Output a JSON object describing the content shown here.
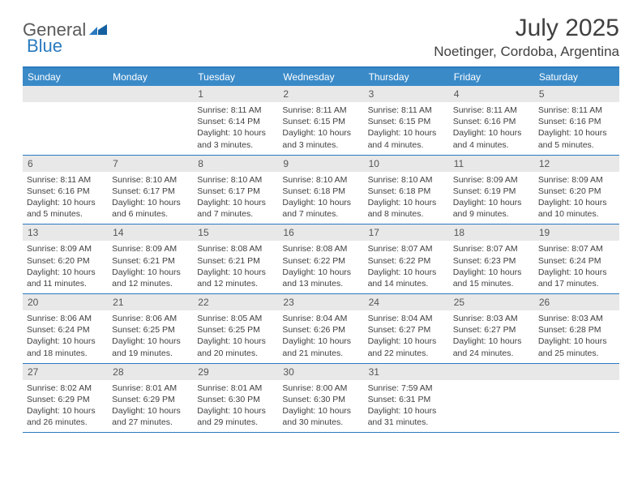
{
  "logo": {
    "general": "General",
    "blue": "Blue"
  },
  "title": "July 2025",
  "location": "Noetinger, Cordoba, Argentina",
  "dayHeaders": [
    "Sunday",
    "Monday",
    "Tuesday",
    "Wednesday",
    "Thursday",
    "Friday",
    "Saturday"
  ],
  "colors": {
    "header_bg": "#3a8ac8",
    "border": "#2a7abf",
    "daynum_bg": "#e8e8e8",
    "text": "#404040"
  },
  "weeks": [
    [
      {
        "n": "",
        "sr": "",
        "ss": "",
        "dl": ""
      },
      {
        "n": "",
        "sr": "",
        "ss": "",
        "dl": ""
      },
      {
        "n": "1",
        "sr": "8:11 AM",
        "ss": "6:14 PM",
        "dl": "10 hours and 3 minutes."
      },
      {
        "n": "2",
        "sr": "8:11 AM",
        "ss": "6:15 PM",
        "dl": "10 hours and 3 minutes."
      },
      {
        "n": "3",
        "sr": "8:11 AM",
        "ss": "6:15 PM",
        "dl": "10 hours and 4 minutes."
      },
      {
        "n": "4",
        "sr": "8:11 AM",
        "ss": "6:16 PM",
        "dl": "10 hours and 4 minutes."
      },
      {
        "n": "5",
        "sr": "8:11 AM",
        "ss": "6:16 PM",
        "dl": "10 hours and 5 minutes."
      }
    ],
    [
      {
        "n": "6",
        "sr": "8:11 AM",
        "ss": "6:16 PM",
        "dl": "10 hours and 5 minutes."
      },
      {
        "n": "7",
        "sr": "8:10 AM",
        "ss": "6:17 PM",
        "dl": "10 hours and 6 minutes."
      },
      {
        "n": "8",
        "sr": "8:10 AM",
        "ss": "6:17 PM",
        "dl": "10 hours and 7 minutes."
      },
      {
        "n": "9",
        "sr": "8:10 AM",
        "ss": "6:18 PM",
        "dl": "10 hours and 7 minutes."
      },
      {
        "n": "10",
        "sr": "8:10 AM",
        "ss": "6:18 PM",
        "dl": "10 hours and 8 minutes."
      },
      {
        "n": "11",
        "sr": "8:09 AM",
        "ss": "6:19 PM",
        "dl": "10 hours and 9 minutes."
      },
      {
        "n": "12",
        "sr": "8:09 AM",
        "ss": "6:20 PM",
        "dl": "10 hours and 10 minutes."
      }
    ],
    [
      {
        "n": "13",
        "sr": "8:09 AM",
        "ss": "6:20 PM",
        "dl": "10 hours and 11 minutes."
      },
      {
        "n": "14",
        "sr": "8:09 AM",
        "ss": "6:21 PM",
        "dl": "10 hours and 12 minutes."
      },
      {
        "n": "15",
        "sr": "8:08 AM",
        "ss": "6:21 PM",
        "dl": "10 hours and 12 minutes."
      },
      {
        "n": "16",
        "sr": "8:08 AM",
        "ss": "6:22 PM",
        "dl": "10 hours and 13 minutes."
      },
      {
        "n": "17",
        "sr": "8:07 AM",
        "ss": "6:22 PM",
        "dl": "10 hours and 14 minutes."
      },
      {
        "n": "18",
        "sr": "8:07 AM",
        "ss": "6:23 PM",
        "dl": "10 hours and 15 minutes."
      },
      {
        "n": "19",
        "sr": "8:07 AM",
        "ss": "6:24 PM",
        "dl": "10 hours and 17 minutes."
      }
    ],
    [
      {
        "n": "20",
        "sr": "8:06 AM",
        "ss": "6:24 PM",
        "dl": "10 hours and 18 minutes."
      },
      {
        "n": "21",
        "sr": "8:06 AM",
        "ss": "6:25 PM",
        "dl": "10 hours and 19 minutes."
      },
      {
        "n": "22",
        "sr": "8:05 AM",
        "ss": "6:25 PM",
        "dl": "10 hours and 20 minutes."
      },
      {
        "n": "23",
        "sr": "8:04 AM",
        "ss": "6:26 PM",
        "dl": "10 hours and 21 minutes."
      },
      {
        "n": "24",
        "sr": "8:04 AM",
        "ss": "6:27 PM",
        "dl": "10 hours and 22 minutes."
      },
      {
        "n": "25",
        "sr": "8:03 AM",
        "ss": "6:27 PM",
        "dl": "10 hours and 24 minutes."
      },
      {
        "n": "26",
        "sr": "8:03 AM",
        "ss": "6:28 PM",
        "dl": "10 hours and 25 minutes."
      }
    ],
    [
      {
        "n": "27",
        "sr": "8:02 AM",
        "ss": "6:29 PM",
        "dl": "10 hours and 26 minutes."
      },
      {
        "n": "28",
        "sr": "8:01 AM",
        "ss": "6:29 PM",
        "dl": "10 hours and 27 minutes."
      },
      {
        "n": "29",
        "sr": "8:01 AM",
        "ss": "6:30 PM",
        "dl": "10 hours and 29 minutes."
      },
      {
        "n": "30",
        "sr": "8:00 AM",
        "ss": "6:30 PM",
        "dl": "10 hours and 30 minutes."
      },
      {
        "n": "31",
        "sr": "7:59 AM",
        "ss": "6:31 PM",
        "dl": "10 hours and 31 minutes."
      },
      {
        "n": "",
        "sr": "",
        "ss": "",
        "dl": ""
      },
      {
        "n": "",
        "sr": "",
        "ss": "",
        "dl": ""
      }
    ]
  ]
}
